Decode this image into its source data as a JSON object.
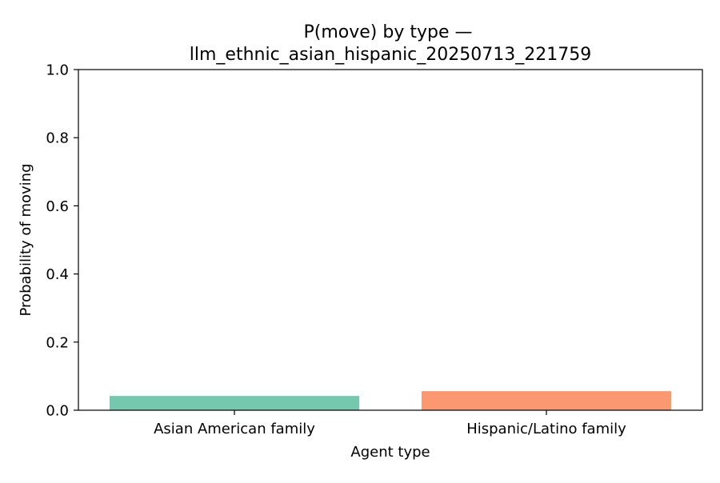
{
  "chart_data": {
    "type": "bar",
    "title_lines": [
      "P(move) by type —",
      "llm_ethnic_asian_hispanic_20250713_221759"
    ],
    "xlabel": "Agent type",
    "ylabel": "Probability of moving",
    "categories": [
      "Asian American family",
      "Hispanic/Latino family"
    ],
    "values": [
      0.042,
      0.056
    ],
    "colors": [
      "#66c2a5",
      "#fc8d62"
    ],
    "ylim": [
      0,
      1.0
    ],
    "yticks": [
      0.0,
      0.2,
      0.4,
      0.6,
      0.8,
      1.0
    ],
    "ytick_labels": [
      "0.0",
      "0.2",
      "0.4",
      "0.6",
      "0.8",
      "1.0"
    ],
    "grid": false,
    "legend": "none"
  }
}
